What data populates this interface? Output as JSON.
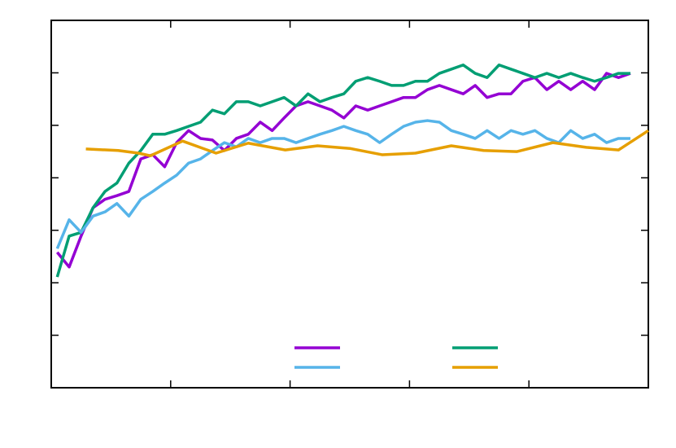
{
  "chart_data": {
    "type": "line",
    "xlim": [
      0,
      5
    ],
    "xticks": [
      1,
      2,
      3,
      4
    ],
    "ylim": [
      0,
      7
    ],
    "yticks": [
      1,
      2,
      3,
      4,
      5,
      6
    ],
    "legend": "lower center",
    "x": [
      0.05,
      0.15,
      0.25,
      0.35,
      0.45,
      0.55,
      0.65,
      0.75,
      0.85,
      0.95,
      1.05,
      1.15,
      1.25,
      1.35,
      1.45,
      1.55,
      1.65,
      1.75,
      1.85,
      1.95,
      2.05,
      2.15,
      2.25,
      2.35,
      2.45,
      2.55,
      2.65,
      2.75,
      2.85,
      2.95,
      3.05,
      3.15,
      3.25,
      3.35,
      3.45,
      3.55,
      3.65,
      3.75,
      3.85,
      3.95,
      4.05,
      4.15,
      4.25,
      4.35,
      4.45,
      4.55,
      4.65,
      4.75,
      4.85
    ],
    "series": [
      {
        "color": "#9400d3",
        "values": [
          2.58,
          2.3,
          2.89,
          3.43,
          3.59,
          3.66,
          3.74,
          4.36,
          4.44,
          4.21,
          4.67,
          4.9,
          4.75,
          4.72,
          4.52,
          4.75,
          4.83,
          5.06,
          4.9,
          5.14,
          5.37,
          5.45,
          5.37,
          5.29,
          5.14,
          5.37,
          5.29,
          5.37,
          5.45,
          5.53,
          5.53,
          5.68,
          5.76,
          5.68,
          5.6,
          5.76,
          5.53,
          5.6,
          5.6,
          5.84,
          5.91,
          5.68,
          5.84,
          5.68,
          5.84,
          5.68,
          5.99,
          5.91,
          5.99
        ]
      },
      {
        "color": "#009e73",
        "values": [
          2.11,
          2.89,
          2.96,
          3.43,
          3.74,
          3.9,
          4.28,
          4.52,
          4.83,
          4.83,
          4.9,
          4.98,
          5.06,
          5.29,
          5.22,
          5.45,
          5.45,
          5.37,
          5.45,
          5.53,
          5.37,
          5.6,
          5.45,
          5.53,
          5.6,
          5.84,
          5.91,
          5.84,
          5.76,
          5.76,
          5.84,
          5.84,
          5.99,
          6.07,
          6.15,
          5.99,
          5.91,
          6.15,
          6.07,
          5.99,
          5.91,
          5.99,
          5.91,
          5.99,
          5.91,
          5.84,
          5.91,
          5.99,
          5.99
        ]
      },
      {
        "color": "#56b4e9",
        "values": [
          2.65,
          3.2,
          2.96,
          3.27,
          3.35,
          3.51,
          3.27,
          3.59,
          3.74,
          3.9,
          4.05,
          4.28,
          4.36,
          4.52,
          4.67,
          4.59,
          4.75,
          4.67,
          4.75,
          4.75,
          4.67,
          4.75,
          4.83,
          4.9,
          4.98,
          4.9,
          4.83,
          4.67,
          4.83,
          4.98,
          5.06,
          5.09,
          5.06,
          4.9,
          4.83,
          4.75,
          4.9,
          4.75,
          4.9,
          4.83,
          4.9,
          4.75,
          4.67,
          4.9,
          4.75,
          4.83,
          4.67,
          4.75,
          4.75
        ]
      },
      {
        "color": "#e69f00",
        "x": [
          0.29,
          0.56,
          0.73,
          0.83,
          1.1,
          1.38,
          1.65,
          1.96,
          2.23,
          2.5,
          2.77,
          3.05,
          3.35,
          3.62,
          3.9,
          4.2,
          4.48,
          4.75,
          5.0
        ],
        "values": [
          4.55,
          4.52,
          4.47,
          4.42,
          4.7,
          4.47,
          4.66,
          4.53,
          4.61,
          4.56,
          4.44,
          4.47,
          4.61,
          4.52,
          4.5,
          4.67,
          4.58,
          4.53,
          4.9
        ]
      }
    ]
  }
}
